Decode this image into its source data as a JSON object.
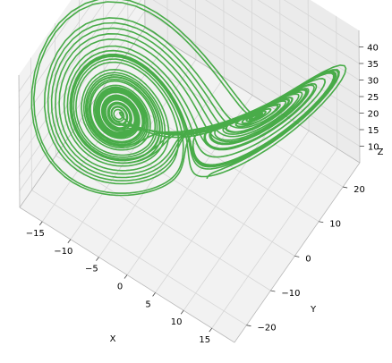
{
  "chart_data": {
    "type": "line",
    "projection": "3d",
    "grid": true,
    "series": [
      {
        "color": "#2ca02c",
        "system": "lorenz",
        "parameters": {
          "sigma": 10,
          "rho": 28,
          "beta": 2.6667
        },
        "initial_point": [
          2.8,
          1.6,
          9.3
        ]
      }
    ],
    "xlabel": "X",
    "ylabel": "Y",
    "zlabel": "Z",
    "xticks": [
      "−15",
      "−10",
      "−5",
      "0",
      "5",
      "10",
      "15"
    ],
    "xtick_values": [
      -15,
      -10,
      -5,
      0,
      5,
      10,
      15
    ],
    "yticks": [
      "−20",
      "−10",
      "0",
      "10",
      "20"
    ],
    "ytick_values": [
      -20,
      -10,
      0,
      10,
      20
    ],
    "zticks": [
      "10",
      "15",
      "20",
      "25",
      "30",
      "35",
      "40"
    ],
    "ztick_values": [
      10,
      15,
      20,
      25,
      30,
      35,
      40
    ],
    "xlim": [
      -19,
      19
    ],
    "ylim": [
      -25,
      27
    ],
    "zlim": [
      5,
      45
    ]
  }
}
